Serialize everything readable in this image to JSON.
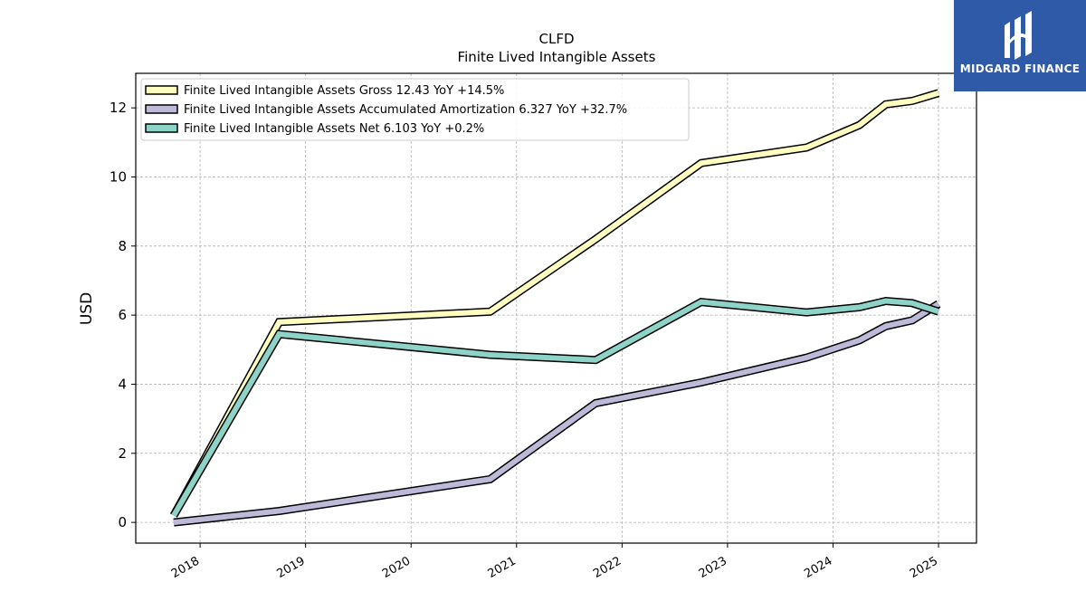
{
  "logo": {
    "text": "MIDGARD FINANCE"
  },
  "chart_data": {
    "type": "line",
    "title": "CLFD",
    "subtitle": "Finite Lived Intangible Assets",
    "ylabel": "USD",
    "xlabel": "",
    "ylim": [
      -0.6,
      13.0
    ],
    "xlim": [
      2017.39,
      2025.36
    ],
    "yticks": [
      0,
      2,
      4,
      6,
      8,
      10,
      12
    ],
    "xticks": [
      2018,
      2019,
      2020,
      2021,
      2022,
      2023,
      2024,
      2025
    ],
    "grid": true,
    "legend_position": "top-left",
    "series": [
      {
        "name": "Finite Lived Intangible Assets Gross",
        "legend": "Finite Lived Intangible Assets Gross  12.43 YoY +14.5%",
        "color": "#ffffc0",
        "x": [
          2017.75,
          2018.75,
          2020.75,
          2021.75,
          2022.75,
          2023.75,
          2024.25,
          2024.5,
          2024.75,
          2025.0
        ],
        "y": [
          0.2,
          5.8,
          6.1,
          8.2,
          10.4,
          10.85,
          11.5,
          12.1,
          12.2,
          12.43
        ]
      },
      {
        "name": "Finite Lived Intangible Assets Accumulated Amortization",
        "legend": "Finite Lived Intangible Assets Accumulated Amortization  6.327 YoY +32.7%",
        "color": "#bcbad8",
        "x": [
          2017.75,
          2018.75,
          2020.75,
          2021.75,
          2022.75,
          2023.75,
          2024.25,
          2024.5,
          2024.75,
          2025.0
        ],
        "y": [
          0.0,
          0.33,
          1.25,
          3.45,
          4.05,
          4.77,
          5.27,
          5.68,
          5.85,
          6.327
        ]
      },
      {
        "name": "Finite Lived Intangible Assets Net",
        "legend": "Finite Lived Intangible Assets Net  6.103 YoY +0.2%",
        "color": "#8dd3c7",
        "x": [
          2017.75,
          2018.75,
          2020.75,
          2021.75,
          2022.75,
          2023.75,
          2024.25,
          2024.5,
          2024.75,
          2025.0
        ],
        "y": [
          0.2,
          5.45,
          4.85,
          4.7,
          6.38,
          6.08,
          6.23,
          6.41,
          6.35,
          6.103
        ]
      }
    ]
  }
}
